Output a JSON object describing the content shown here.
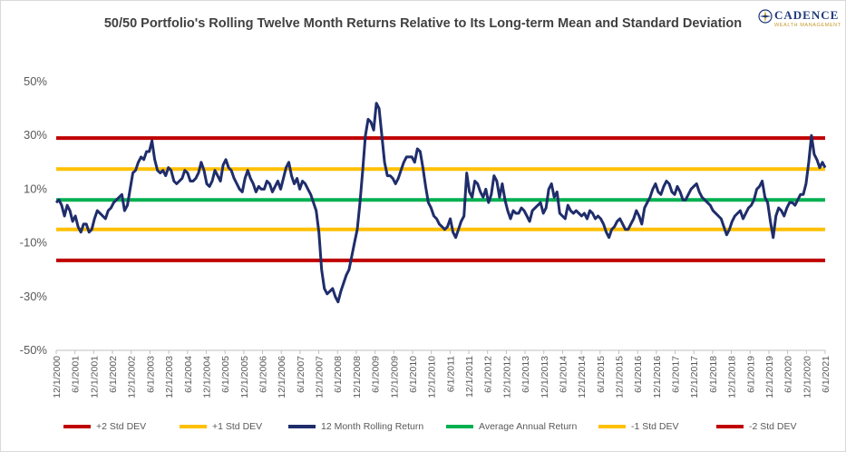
{
  "title": "50/50 Portfolio's Rolling Twelve Month Returns Relative to Its Long-term Mean and Standard Deviation",
  "logo": {
    "name": "CADENCE",
    "sub": "WEALTH MANAGEMENT"
  },
  "chart_data": {
    "type": "line",
    "title": "50/50 Portfolio's Rolling Twelve Month Returns Relative to Its Long-term Mean and Standard Deviation",
    "ylim": [
      -50,
      50
    ],
    "y_ticks": [
      "50%",
      "30%",
      "10%",
      "-10%",
      "-30%",
      "-50%"
    ],
    "y_tick_values": [
      50,
      30,
      10,
      -10,
      -30,
      -50
    ],
    "x_ticks": [
      "12/1/2000",
      "6/1/2001",
      "12/1/2001",
      "6/1/2002",
      "12/1/2002",
      "6/1/2003",
      "12/1/2003",
      "6/1/2004",
      "12/1/2004",
      "6/1/2005",
      "12/1/2005",
      "6/1/2006",
      "12/1/2006",
      "6/1/2007",
      "12/1/2007",
      "6/1/2008",
      "12/1/2008",
      "6/1/2009",
      "12/1/2009",
      "6/1/2010",
      "12/1/2010",
      "6/1/2011",
      "12/1/2011",
      "6/1/2012",
      "12/1/2012",
      "6/1/2013",
      "12/1/2013",
      "6/1/2014",
      "12/1/2014",
      "6/1/2015",
      "12/1/2015",
      "6/1/2016",
      "12/1/2016",
      "6/1/2017",
      "12/1/2017",
      "6/1/2018",
      "12/1/2018",
      "6/1/2019",
      "12/1/2019",
      "6/1/2020",
      "12/1/2020",
      "6/1/2021"
    ],
    "grid": false,
    "legend_position": "bottom",
    "colors": {
      "plus2": "#c00000",
      "plus1": "#ffc000",
      "rolling": "#1f2d6b",
      "avg": "#00b050",
      "minus1": "#ffc000",
      "minus2": "#c00000"
    },
    "reference_lines": {
      "plus2": 29.0,
      "plus1": 17.5,
      "avg": 6.0,
      "minus1": -5.0,
      "minus2": -16.5
    },
    "rolling_start_index": 0,
    "rolling_values": [
      5,
      6,
      4,
      0,
      4,
      2,
      -2,
      0,
      -4,
      -6,
      -3,
      -3,
      -6,
      -5,
      -1,
      2,
      1,
      0,
      -1,
      2,
      3,
      5,
      6,
      7,
      8,
      2,
      4,
      10,
      16,
      17,
      20,
      22,
      21,
      24,
      24,
      28,
      21,
      17,
      16,
      17,
      15,
      18,
      17,
      13,
      12,
      13,
      14,
      17,
      16,
      13,
      13,
      14,
      16,
      20,
      17,
      12,
      11,
      13,
      17,
      15,
      13,
      19,
      21,
      18,
      17,
      14,
      12,
      10,
      9,
      14,
      17,
      14,
      12,
      9,
      11,
      10,
      10,
      13,
      12,
      9,
      11,
      13,
      10,
      14,
      18,
      20,
      15,
      12,
      14,
      10,
      13,
      12,
      10,
      8,
      5,
      2,
      -6,
      -20,
      -27,
      -29,
      -28,
      -27,
      -30,
      -32,
      -28,
      -25,
      -22,
      -20,
      -15,
      -10,
      -5,
      5,
      17,
      30,
      36,
      35,
      32,
      42,
      40,
      30,
      20,
      15,
      15,
      14,
      12,
      14,
      17,
      20,
      22,
      22,
      22,
      20,
      25,
      24,
      18,
      11,
      5,
      3,
      0,
      -1,
      -3,
      -4,
      -5,
      -4,
      -1,
      -6,
      -8,
      -5,
      -2,
      0,
      16,
      9,
      7,
      13,
      12,
      9,
      7,
      10,
      5,
      8,
      15,
      13,
      7,
      12,
      6,
      2,
      -1,
      2,
      1,
      1,
      3,
      2,
      0,
      -2,
      2,
      3,
      4,
      5,
      1,
      3,
      10,
      12,
      7,
      9,
      1,
      0,
      -1,
      4,
      2,
      1,
      2,
      1,
      0,
      1,
      -1,
      2,
      1,
      -1,
      0,
      -1,
      -3,
      -6,
      -8,
      -5,
      -4,
      -2,
      -1,
      -3,
      -5,
      -5,
      -3,
      -1,
      2,
      0,
      -3,
      3,
      5,
      7,
      10,
      12,
      9,
      8,
      11,
      13,
      12,
      9,
      8,
      11,
      9,
      6,
      6,
      8,
      10,
      11,
      12,
      9,
      7,
      6,
      5,
      4,
      2,
      1,
      0,
      -1,
      -4,
      -7,
      -5,
      -2,
      0,
      1,
      2,
      -1,
      1,
      3,
      4,
      6,
      10,
      11,
      13,
      7,
      5,
      -2,
      -8,
      0,
      3,
      2,
      0,
      3,
      5,
      5,
      4,
      6,
      8,
      8,
      12,
      20,
      30,
      23,
      21,
      18,
      20,
      18
    ]
  },
  "legend": [
    {
      "key": "plus2",
      "label": "+2 Std DEV"
    },
    {
      "key": "plus1",
      "label": "+1 Std DEV"
    },
    {
      "key": "rolling",
      "label": "12 Month Rolling Return"
    },
    {
      "key": "avg",
      "label": "Average Annual Return"
    },
    {
      "key": "minus1",
      "label": "-1 Std DEV"
    },
    {
      "key": "minus2",
      "label": "-2 Std DEV"
    }
  ]
}
